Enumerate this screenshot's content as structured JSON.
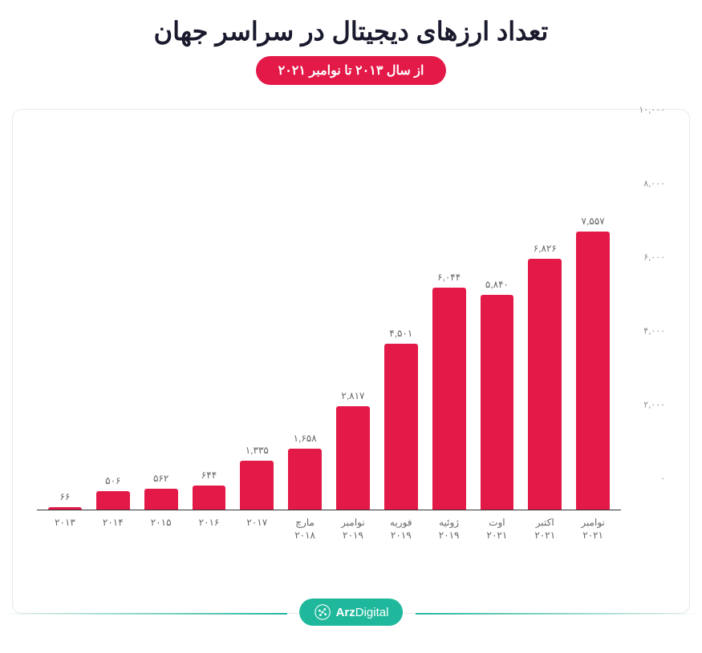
{
  "title": "تعداد ارزهای دیجیتال در سراسر جهان",
  "subtitle": "از سال ۲۰۱۳ تا نوامبر ۲۰۲۱",
  "chart": {
    "type": "bar",
    "bar_color": "#e31948",
    "accent_color": "#e31948",
    "teal_color": "#1fb89c",
    "background_color": "#ffffff",
    "title_color": "#1a1a2e",
    "axis_text_color": "#888888",
    "grid_color": "#e8e8e8",
    "baseline_color": "#333333",
    "ylim_max": 10000,
    "ytick_step": 2000,
    "yticks": [
      "۰",
      "۲,۰۰۰",
      "۴,۰۰۰",
      "۶,۰۰۰",
      "۸,۰۰۰",
      "۱۰,۰۰۰"
    ],
    "categories": [
      "۲۰۱۳",
      "۲۰۱۴",
      "۲۰۱۵",
      "۲۰۱۶",
      "۲۰۱۷",
      "مارچ\n۲۰۱۸",
      "نوامبر\n۲۰۱۹",
      "فوریه\n۲۰۱۹",
      "ژوئیه\n۲۰۱۹",
      "اوت\n۲۰۲۱",
      "اکتبر\n۲۰۲۱",
      "نوامبر\n۲۰۲۱"
    ],
    "values": [
      66,
      506,
      562,
      644,
      1335,
      1658,
      2817,
      4501,
      6044,
      5840,
      6826,
      7557
    ],
    "value_labels": [
      "۶۶",
      "۵۰۶",
      "۵۶۲",
      "۶۴۴",
      "۱,۳۳۵",
      "۱,۶۵۸",
      "۲,۸۱۷",
      "۴,۵۰۱",
      "۶,۰۴۴",
      "۵,۸۴۰",
      "۶,۸۲۶",
      "۷,۵۵۷"
    ],
    "bar_width_pct": 70,
    "title_fontsize": 32,
    "subtitle_fontsize": 16,
    "label_fontsize": 12
  },
  "logo": {
    "text_bold": "Arz",
    "text_light": "Digital",
    "pill_bg": "#1fb89c",
    "icon_color": "#ffffff"
  }
}
